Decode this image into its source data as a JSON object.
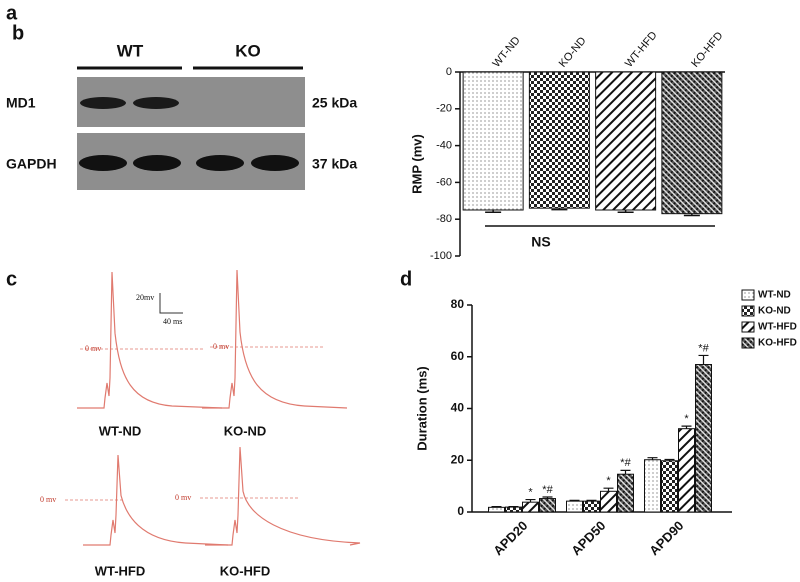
{
  "panel_a": {
    "letter": "a",
    "groups": [
      "WT",
      "KO"
    ],
    "rows": [
      {
        "label": "MD1",
        "size": "25 kDa"
      },
      {
        "label": "GAPDH",
        "size": "37 kDa"
      }
    ]
  },
  "panel_c": {
    "letter": "c",
    "scale_y": "20mv",
    "scale_x": "40 ms",
    "traces": [
      {
        "label": "WT-ND",
        "zero": "0 mv"
      },
      {
        "label": "KO-ND",
        "zero": "0 mv"
      },
      {
        "label": "WT-HFD",
        "zero": "0 mv"
      },
      {
        "label": "KO-HFD",
        "zero": "0 mv"
      }
    ]
  },
  "chart_data": [
    {
      "letter": "b",
      "type": "bar",
      "categories": [
        "WT-ND",
        "KO-ND",
        "WT-HFD",
        "KO-HFD"
      ],
      "values": [
        -75,
        -74,
        -75,
        -77
      ],
      "errors": [
        1.2,
        0.8,
        1.2,
        1.0
      ],
      "ylabel": "RMP (mv)",
      "annotation": "NS",
      "ylim": [
        -100,
        0
      ],
      "yticks": [
        -100,
        -80,
        -60,
        -40,
        -20,
        0
      ]
    },
    {
      "letter": "d",
      "type": "grouped_bar",
      "categories": [
        "APD20",
        "APD50",
        "APD90"
      ],
      "ylabel": "Duration (ms)",
      "ylim": [
        0,
        80
      ],
      "yticks": [
        0,
        20,
        40,
        60,
        80
      ],
      "series": [
        {
          "name": "WT-ND",
          "values": [
            1.8,
            4.2,
            20.2
          ],
          "errors": [
            0.3,
            0.3,
            0.8
          ]
        },
        {
          "name": "KO-ND",
          "values": [
            1.9,
            4.2,
            19.8
          ],
          "errors": [
            0.2,
            0.3,
            0.5
          ]
        },
        {
          "name": "WT-HFD",
          "values": [
            3.8,
            8.0,
            32.2
          ],
          "errors": [
            1.0,
            1.2,
            1.0
          ],
          "annotations": [
            "*",
            "*",
            "*"
          ]
        },
        {
          "name": "KO-HFD",
          "values": [
            5.2,
            14.6,
            57.0
          ],
          "errors": [
            0.6,
            1.5,
            3.5
          ],
          "annotations": [
            "*#",
            "*#",
            "*#"
          ]
        }
      ]
    }
  ]
}
